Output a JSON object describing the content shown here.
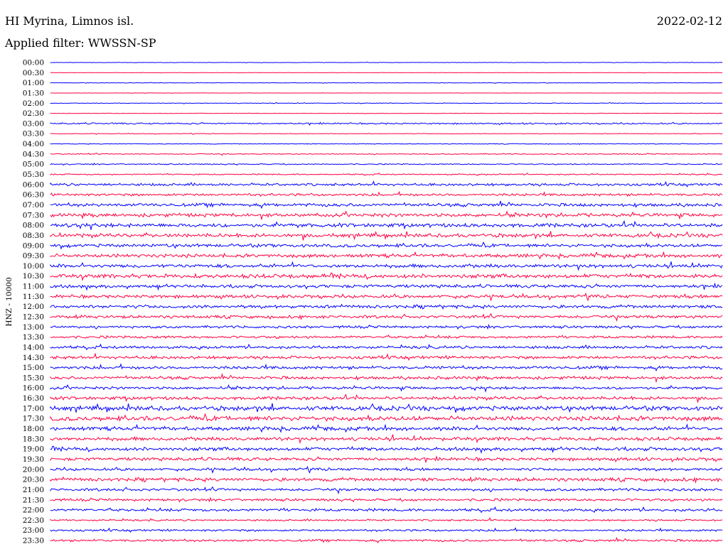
{
  "header": {
    "station": "HI Myrina, Limnos isl.",
    "date": "2022-02-12",
    "filter": "Applied filter: WWSSN-SP"
  },
  "chart_data": {
    "type": "line",
    "title": "HI Myrina, Limnos isl.",
    "ylabel": "HNZ - 10000",
    "series_colors": [
      "#0000ff",
      "#ff0040"
    ],
    "rows": [
      {
        "label": "00:00",
        "color": "#0000ff",
        "amplitude": 0.3
      },
      {
        "label": "00:30",
        "color": "#ff0040",
        "amplitude": 0.3
      },
      {
        "label": "01:00",
        "color": "#0000ff",
        "amplitude": 0.4
      },
      {
        "label": "01:30",
        "color": "#ff0040",
        "amplitude": 0.2
      },
      {
        "label": "02:00",
        "color": "#0000ff",
        "amplitude": 0.5
      },
      {
        "label": "02:30",
        "color": "#ff0040",
        "amplitude": 0.4
      },
      {
        "label": "03:00",
        "color": "#0000ff",
        "amplitude": 1.2
      },
      {
        "label": "03:30",
        "color": "#ff0040",
        "amplitude": 0.5
      },
      {
        "label": "04:00",
        "color": "#0000ff",
        "amplitude": 0.6
      },
      {
        "label": "04:30",
        "color": "#ff0040",
        "amplitude": 0.8
      },
      {
        "label": "05:00",
        "color": "#0000ff",
        "amplitude": 0.9
      },
      {
        "label": "05:30",
        "color": "#ff0040",
        "amplitude": 1.0
      },
      {
        "label": "06:00",
        "color": "#0000ff",
        "amplitude": 2.0
      },
      {
        "label": "06:30",
        "color": "#ff0040",
        "amplitude": 2.0
      },
      {
        "label": "07:00",
        "color": "#0000ff",
        "amplitude": 2.6
      },
      {
        "label": "07:30",
        "color": "#ff0040",
        "amplitude": 2.8
      },
      {
        "label": "08:00",
        "color": "#0000ff",
        "amplitude": 3.0
      },
      {
        "label": "08:30",
        "color": "#ff0040",
        "amplitude": 3.0
      },
      {
        "label": "09:00",
        "color": "#0000ff",
        "amplitude": 2.6
      },
      {
        "label": "09:30",
        "color": "#ff0040",
        "amplitude": 2.8
      },
      {
        "label": "10:00",
        "color": "#0000ff",
        "amplitude": 2.8
      },
      {
        "label": "10:30",
        "color": "#ff0040",
        "amplitude": 3.2
      },
      {
        "label": "11:00",
        "color": "#0000ff",
        "amplitude": 2.6
      },
      {
        "label": "11:30",
        "color": "#ff0040",
        "amplitude": 2.6
      },
      {
        "label": "12:00",
        "color": "#0000ff",
        "amplitude": 2.6
      },
      {
        "label": "12:30",
        "color": "#ff0040",
        "amplitude": 2.4
      },
      {
        "label": "13:00",
        "color": "#0000ff",
        "amplitude": 2.0
      },
      {
        "label": "13:30",
        "color": "#ff0040",
        "amplitude": 2.0
      },
      {
        "label": "14:00",
        "color": "#0000ff",
        "amplitude": 2.2
      },
      {
        "label": "14:30",
        "color": "#ff0040",
        "amplitude": 2.4
      },
      {
        "label": "15:00",
        "color": "#0000ff",
        "amplitude": 2.4
      },
      {
        "label": "15:30",
        "color": "#ff0040",
        "amplitude": 2.4
      },
      {
        "label": "16:00",
        "color": "#0000ff",
        "amplitude": 2.2
      },
      {
        "label": "16:30",
        "color": "#ff0040",
        "amplitude": 2.6
      },
      {
        "label": "17:00",
        "color": "#0000ff",
        "amplitude": 3.6
      },
      {
        "label": "17:30",
        "color": "#ff0040",
        "amplitude": 3.6
      },
      {
        "label": "18:00",
        "color": "#0000ff",
        "amplitude": 3.0
      },
      {
        "label": "18:30",
        "color": "#ff0040",
        "amplitude": 2.8
      },
      {
        "label": "19:00",
        "color": "#0000ff",
        "amplitude": 2.8
      },
      {
        "label": "19:30",
        "color": "#ff0040",
        "amplitude": 2.6
      },
      {
        "label": "20:00",
        "color": "#0000ff",
        "amplitude": 2.2
      },
      {
        "label": "20:30",
        "color": "#ff0040",
        "amplitude": 2.8
      },
      {
        "label": "21:00",
        "color": "#0000ff",
        "amplitude": 2.2
      },
      {
        "label": "21:30",
        "color": "#ff0040",
        "amplitude": 2.0
      },
      {
        "label": "22:00",
        "color": "#0000ff",
        "amplitude": 2.2
      },
      {
        "label": "22:30",
        "color": "#ff0040",
        "amplitude": 1.4
      },
      {
        "label": "23:00",
        "color": "#0000ff",
        "amplitude": 1.6
      },
      {
        "label": "23:30",
        "color": "#ff0040",
        "amplitude": 1.8
      }
    ]
  }
}
